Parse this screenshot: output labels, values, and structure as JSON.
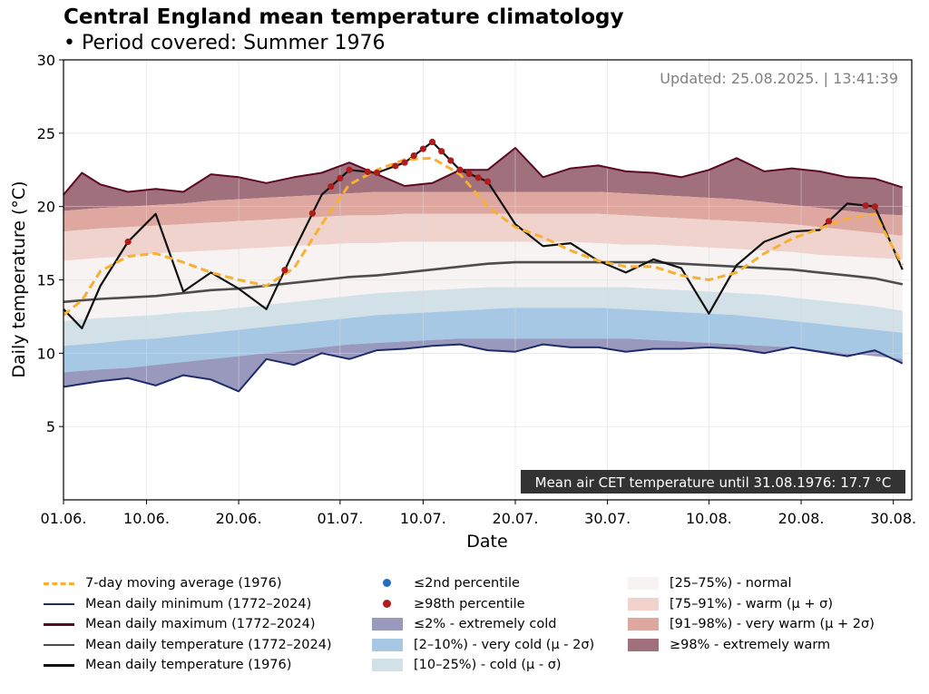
{
  "title": "Central England mean temperature climatology",
  "subtitle": "• Period covered: Summer 1976",
  "updated": "Updated: 25.08.2025. | 13:41:39",
  "infobox": "Mean air CET temperature until 31.08.1976: 17.7 °C",
  "colors": {
    "p98": "#a0707c",
    "p91": "#dea8a0",
    "p75": "#efd3cc",
    "p25": "#f6f3f2",
    "p10": "#d2e0e8",
    "p2": "#a6c8e4",
    "p0": "#9999bd",
    "max_line": "#5c0a23",
    "min_line": "#1f2b6b",
    "mean_line": "#4d4d4d",
    "year_line": "#111111",
    "ma_line": "#f7b032",
    "dot_hi": "#b01c1c",
    "dot_lo": "#1f6fc4"
  },
  "legend": [
    {
      "label": "7-day moving average (1976)",
      "icon": "dash",
      "color": "#f7b032"
    },
    {
      "label": "Mean daily minimum (1772–2024)",
      "icon": "line",
      "color": "#1f2b6b"
    },
    {
      "label": "Mean daily maximum (1772–2024)",
      "icon": "line",
      "color": "#5c0a23"
    },
    {
      "label": "Mean daily temperature (1772–2024)",
      "icon": "line",
      "color": "#4d4d4d"
    },
    {
      "label": "Mean daily temperature (1976)",
      "icon": "line",
      "color": "#111111"
    },
    {
      "label": "≤2nd percentile",
      "icon": "dot",
      "color": "#1f6fc4"
    },
    {
      "label": "≥98th percentile",
      "icon": "dot",
      "color": "#b01c1c"
    },
    {
      "label": "≤2% - extremely cold",
      "icon": "patch",
      "color": "#9999bd"
    },
    {
      "label": "[2–10%) - very cold (μ - 2σ)",
      "icon": "patch",
      "color": "#a6c8e4"
    },
    {
      "label": "[10–25%) - cold (μ - σ)",
      "icon": "patch",
      "color": "#d2e0e8"
    },
    {
      "label": "[25–75%) - normal",
      "icon": "patch",
      "color": "#f6f3f2"
    },
    {
      "label": "[75–91%) - warm (μ + σ)",
      "icon": "patch",
      "color": "#efd3cc"
    },
    {
      "label": "[91–98%) - very warm (μ + 2σ)",
      "icon": "patch",
      "color": "#dea8a0"
    },
    {
      "label": "≥98% - extremely warm",
      "icon": "patch",
      "color": "#a0707c"
    }
  ],
  "chart_data": {
    "type": "line",
    "title": "Central England mean temperature climatology",
    "xlabel": "Date",
    "ylabel": "Daily temperature (°C)",
    "ylim": [
      0,
      30
    ],
    "yticks": [
      5,
      10,
      15,
      20,
      25,
      30
    ],
    "xticks": [
      {
        "label": "01.06.",
        "day": 1
      },
      {
        "label": "10.06.",
        "day": 10
      },
      {
        "label": "20.06.",
        "day": 20
      },
      {
        "label": "01.07.",
        "day": 31
      },
      {
        "label": "10.07.",
        "day": 40
      },
      {
        "label": "20.07.",
        "day": 50
      },
      {
        "label": "30.07.",
        "day": 60
      },
      {
        "label": "10.08.",
        "day": 71
      },
      {
        "label": "20.08.",
        "day": 81
      },
      {
        "label": "30.08.",
        "day": 91
      }
    ],
    "x_start_date": "01.06.1976",
    "grid": true,
    "anchor_days": [
      1,
      3,
      5,
      8,
      11,
      14,
      17,
      20,
      23,
      26,
      29,
      32,
      35,
      38,
      41,
      44,
      47,
      50,
      53,
      56,
      59,
      62,
      65,
      68,
      71,
      74,
      77,
      80,
      83,
      86,
      89,
      92
    ],
    "series": [
      {
        "name": "Mean daily maximum (1772–2024)",
        "values": [
          20.8,
          22.3,
          21.5,
          21.0,
          21.2,
          21.0,
          22.2,
          22.0,
          21.6,
          22.0,
          22.3,
          23.0,
          22.2,
          21.4,
          21.6,
          22.5,
          22.5,
          24.0,
          22.0,
          22.6,
          22.8,
          22.4,
          22.3,
          22.0,
          22.5,
          23.3,
          22.4,
          22.6,
          22.4,
          22.0,
          21.9,
          21.3
        ]
      },
      {
        "name": "p98",
        "values": [
          19.7,
          19.8,
          19.9,
          20.0,
          20.1,
          20.2,
          20.4,
          20.5,
          20.6,
          20.7,
          20.8,
          20.9,
          21.0,
          21.0,
          21.0,
          21.0,
          21.0,
          21.0,
          21.0,
          21.0,
          21.0,
          20.9,
          20.8,
          20.7,
          20.6,
          20.5,
          20.3,
          20.1,
          19.9,
          19.7,
          19.5,
          19.4
        ]
      },
      {
        "name": "p91",
        "values": [
          18.3,
          18.4,
          18.5,
          18.6,
          18.7,
          18.8,
          18.9,
          19.0,
          19.1,
          19.2,
          19.3,
          19.4,
          19.4,
          19.5,
          19.5,
          19.5,
          19.5,
          19.5,
          19.5,
          19.5,
          19.5,
          19.4,
          19.3,
          19.2,
          19.1,
          19.0,
          18.9,
          18.8,
          18.6,
          18.4,
          18.2,
          18.0
        ]
      },
      {
        "name": "p75",
        "values": [
          16.3,
          16.4,
          16.5,
          16.6,
          16.8,
          16.9,
          17.0,
          17.1,
          17.2,
          17.3,
          17.4,
          17.5,
          17.5,
          17.6,
          17.6,
          17.6,
          17.6,
          17.6,
          17.6,
          17.6,
          17.5,
          17.4,
          17.4,
          17.3,
          17.2,
          17.1,
          17.0,
          16.9,
          16.7,
          16.6,
          16.5,
          16.4
        ]
      },
      {
        "name": "Mean daily temperature (1772–2024)",
        "values": [
          13.5,
          13.6,
          13.7,
          13.8,
          13.9,
          14.1,
          14.3,
          14.4,
          14.6,
          14.8,
          15.0,
          15.2,
          15.3,
          15.5,
          15.7,
          15.9,
          16.1,
          16.2,
          16.2,
          16.2,
          16.2,
          16.2,
          16.2,
          16.1,
          16.0,
          15.9,
          15.8,
          15.7,
          15.5,
          15.3,
          15.1,
          14.7
        ]
      },
      {
        "name": "p25",
        "values": [
          12.2,
          12.3,
          12.4,
          12.5,
          12.6,
          12.8,
          12.9,
          13.1,
          13.3,
          13.5,
          13.7,
          13.9,
          14.1,
          14.2,
          14.3,
          14.4,
          14.5,
          14.5,
          14.5,
          14.5,
          14.5,
          14.5,
          14.4,
          14.3,
          14.2,
          14.1,
          14.0,
          13.8,
          13.6,
          13.4,
          13.2,
          12.9
        ]
      },
      {
        "name": "p10",
        "values": [
          10.5,
          10.6,
          10.7,
          10.9,
          11.0,
          11.2,
          11.4,
          11.6,
          11.8,
          12.0,
          12.2,
          12.4,
          12.6,
          12.7,
          12.8,
          12.9,
          13.0,
          13.1,
          13.1,
          13.1,
          13.1,
          13.0,
          12.9,
          12.8,
          12.7,
          12.6,
          12.4,
          12.2,
          12.0,
          11.8,
          11.6,
          11.4
        ]
      },
      {
        "name": "p2",
        "values": [
          8.7,
          8.8,
          8.9,
          9.0,
          9.2,
          9.4,
          9.6,
          9.8,
          10.0,
          10.2,
          10.4,
          10.6,
          10.7,
          10.8,
          10.9,
          11.0,
          11.0,
          11.0,
          11.0,
          11.0,
          11.0,
          11.0,
          10.9,
          10.8,
          10.7,
          10.6,
          10.5,
          10.4,
          10.2,
          10.0,
          9.8,
          9.6
        ]
      },
      {
        "name": "Mean daily minimum (1772–2024)",
        "values": [
          7.7,
          7.9,
          8.1,
          8.3,
          7.8,
          8.5,
          8.2,
          7.4,
          9.6,
          9.2,
          10.0,
          9.6,
          10.2,
          10.3,
          10.5,
          10.6,
          10.2,
          10.1,
          10.6,
          10.4,
          10.4,
          10.1,
          10.3,
          10.3,
          10.4,
          10.3,
          10.0,
          10.4,
          10.1,
          9.8,
          10.2,
          9.3
        ]
      },
      {
        "name": "Mean daily temperature (1976)",
        "values": [
          13.0,
          11.7,
          14.6,
          17.6,
          19.5,
          14.2,
          15.5,
          14.4,
          13.0,
          17.0,
          20.8,
          22.5,
          22.3,
          23.0,
          24.4,
          22.5,
          21.7,
          18.8,
          17.3,
          17.5,
          16.3,
          15.5,
          16.4,
          15.8,
          12.7,
          16.0,
          17.6,
          18.3,
          18.4,
          20.2,
          20.0,
          15.7
        ]
      },
      {
        "name": "7-day moving average (1976)",
        "values": [
          12.6,
          13.6,
          15.6,
          16.6,
          16.8,
          16.2,
          15.5,
          15.0,
          14.6,
          15.8,
          18.8,
          21.5,
          22.5,
          23.2,
          23.3,
          22.2,
          20.0,
          18.6,
          17.9,
          17.0,
          16.3,
          15.9,
          15.9,
          15.3,
          15.0,
          15.5,
          16.8,
          17.8,
          18.5,
          19.2,
          19.5,
          16.0
        ]
      }
    ],
    "p98_points_days": [
      8,
      25,
      28,
      30,
      31,
      32,
      34,
      35,
      37,
      38,
      39,
      40,
      41,
      42,
      43,
      44,
      45,
      46,
      47,
      84,
      88,
      89
    ]
  }
}
